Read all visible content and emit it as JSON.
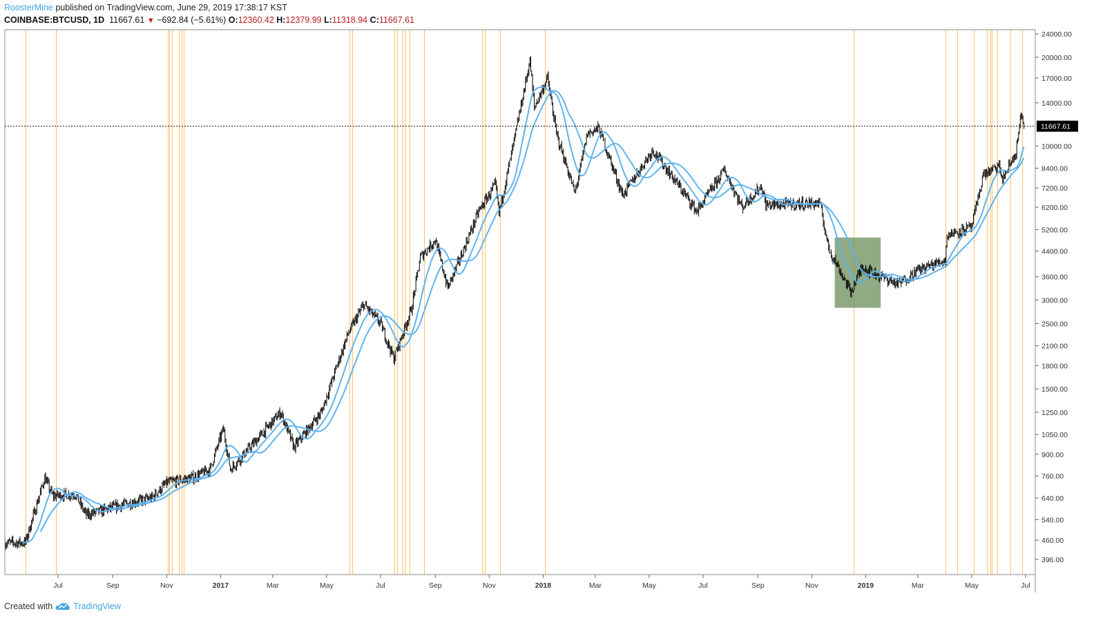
{
  "header": {
    "author": "RoosterMine",
    "published": "published on TradingView.com, June 29, 2019 17:38:17 KST",
    "symbol": "COINBASE:BTCUSD, 1D",
    "last": "11667.61",
    "change": "−692.84 (−5.61%)",
    "o_label": "O:",
    "o": "12360.42",
    "h_label": "H:",
    "h": "12379.99",
    "l_label": "L:",
    "l": "11318.94",
    "c_label": "C:",
    "c": "11667.61"
  },
  "footer": {
    "created_with": "Created with",
    "brand": "TradingView"
  },
  "colors": {
    "candle": "#000000",
    "ma": "#5fb3ee",
    "event_line": "#ffb74d",
    "box": "#6b8e5a",
    "last_price_bg": "#000000"
  },
  "chart_data": {
    "type": "candlestick",
    "scale": "log",
    "ylim": [
      380,
      25000
    ],
    "xlim": [
      "2016-05-02",
      "2019-07-12"
    ],
    "y_ticks": [
      "396.00",
      "460.00",
      "540.00",
      "640.00",
      "760.00",
      "900.00",
      "1050.00",
      "1250.00",
      "1500.00",
      "1800.00",
      "2100.00",
      "2500.00",
      "3000.00",
      "3600.00",
      "4400.00",
      "5200.00",
      "6200.00",
      "7200.00",
      "8400.00",
      "10000.00",
      "14000.00",
      "17000.00",
      "20000.00",
      "24000.00"
    ],
    "x_ticks": [
      {
        "date": "2016-07-01",
        "label": "Jul"
      },
      {
        "date": "2016-09-01",
        "label": "Sep"
      },
      {
        "date": "2016-11-01",
        "label": "Nov"
      },
      {
        "date": "2017-01-01",
        "label": "2017",
        "bold": true
      },
      {
        "date": "2017-03-01",
        "label": "Mar"
      },
      {
        "date": "2017-05-01",
        "label": "May"
      },
      {
        "date": "2017-07-01",
        "label": "Jul"
      },
      {
        "date": "2017-09-01",
        "label": "Sep"
      },
      {
        "date": "2017-11-01",
        "label": "Nov"
      },
      {
        "date": "2018-01-01",
        "label": "2018",
        "bold": true
      },
      {
        "date": "2018-03-01",
        "label": "Mar"
      },
      {
        "date": "2018-05-01",
        "label": "May"
      },
      {
        "date": "2018-07-01",
        "label": "Jul"
      },
      {
        "date": "2018-09-01",
        "label": "Sep"
      },
      {
        "date": "2018-11-01",
        "label": "Nov"
      },
      {
        "date": "2019-01-01",
        "label": "2019",
        "bold": true
      },
      {
        "date": "2019-03-01",
        "label": "Mar"
      },
      {
        "date": "2019-05-01",
        "label": "May"
      },
      {
        "date": "2019-07-01",
        "label": "Jul"
      }
    ],
    "last_price": 11667.61,
    "last_price_label": "11667.61",
    "price_path": [
      [
        "2016-05-02",
        450
      ],
      [
        "2016-05-25",
        452
      ],
      [
        "2016-06-16",
        750
      ],
      [
        "2016-06-25",
        650
      ],
      [
        "2016-07-20",
        660
      ],
      [
        "2016-08-02",
        560
      ],
      [
        "2016-08-20",
        580
      ],
      [
        "2016-09-15",
        610
      ],
      [
        "2016-10-15",
        640
      ],
      [
        "2016-11-01",
        720
      ],
      [
        "2016-12-01",
        750
      ],
      [
        "2016-12-20",
        800
      ],
      [
        "2017-01-04",
        1100
      ],
      [
        "2017-01-12",
        800
      ],
      [
        "2017-02-10",
        1000
      ],
      [
        "2017-03-10",
        1250
      ],
      [
        "2017-03-25",
        950
      ],
      [
        "2017-04-25",
        1250
      ],
      [
        "2017-05-10",
        1700
      ],
      [
        "2017-05-25",
        2300
      ],
      [
        "2017-06-12",
        2900
      ],
      [
        "2017-07-01",
        2500
      ],
      [
        "2017-07-16",
        1900
      ],
      [
        "2017-08-05",
        2800
      ],
      [
        "2017-08-15",
        4200
      ],
      [
        "2017-09-01",
        4800
      ],
      [
        "2017-09-15",
        3300
      ],
      [
        "2017-10-01",
        4300
      ],
      [
        "2017-10-20",
        6000
      ],
      [
        "2017-11-08",
        7400
      ],
      [
        "2017-11-12",
        5900
      ],
      [
        "2017-11-28",
        10000
      ],
      [
        "2017-12-17",
        19500
      ],
      [
        "2017-12-22",
        13500
      ],
      [
        "2018-01-06",
        17000
      ],
      [
        "2018-01-16",
        11000
      ],
      [
        "2018-02-06",
        6900
      ],
      [
        "2018-02-20",
        11000
      ],
      [
        "2018-03-05",
        11500
      ],
      [
        "2018-04-01",
        6800
      ],
      [
        "2018-05-05",
        9700
      ],
      [
        "2018-06-01",
        7500
      ],
      [
        "2018-06-24",
        6000
      ],
      [
        "2018-07-25",
        8300
      ],
      [
        "2018-08-14",
        6200
      ],
      [
        "2018-09-05",
        7300
      ],
      [
        "2018-09-10",
        6300
      ],
      [
        "2018-11-10",
        6400
      ],
      [
        "2018-11-20",
        4500
      ],
      [
        "2018-12-15",
        3200
      ],
      [
        "2018-12-28",
        3900
      ],
      [
        "2019-01-10",
        3700
      ],
      [
        "2019-02-07",
        3400
      ],
      [
        "2019-03-01",
        3800
      ],
      [
        "2019-04-01",
        4100
      ],
      [
        "2019-04-03",
        5000
      ],
      [
        "2019-05-01",
        5300
      ],
      [
        "2019-05-14",
        8000
      ],
      [
        "2019-06-01",
        8500
      ],
      [
        "2019-06-05",
        7700
      ],
      [
        "2019-06-20",
        9500
      ],
      [
        "2019-06-26",
        12800
      ],
      [
        "2019-06-29",
        11667.61
      ]
    ],
    "moving_averages": [
      {
        "name": "MA fast",
        "period": 20
      },
      {
        "name": "MA slow",
        "period": 40
      }
    ],
    "event_lines": [
      "2016-05-25",
      "2016-06-29",
      "2016-11-02",
      "2016-11-04",
      "2016-11-07",
      "2016-11-15",
      "2016-11-18",
      "2016-11-20",
      "2017-05-27",
      "2017-05-30",
      "2017-07-17",
      "2017-07-20",
      "2017-07-25",
      "2017-07-28",
      "2017-08-03",
      "2017-08-19",
      "2017-10-24",
      "2017-10-27",
      "2017-11-13",
      "2018-01-03",
      "2018-12-18",
      "2019-04-01",
      "2019-04-15",
      "2019-05-03",
      "2019-05-18",
      "2019-05-22",
      "2019-05-24",
      "2019-05-30",
      "2019-06-14",
      "2019-06-27"
    ],
    "highlight_box": {
      "from": "2018-11-27",
      "to": "2019-01-18",
      "low": 2825,
      "high": 4890
    }
  }
}
